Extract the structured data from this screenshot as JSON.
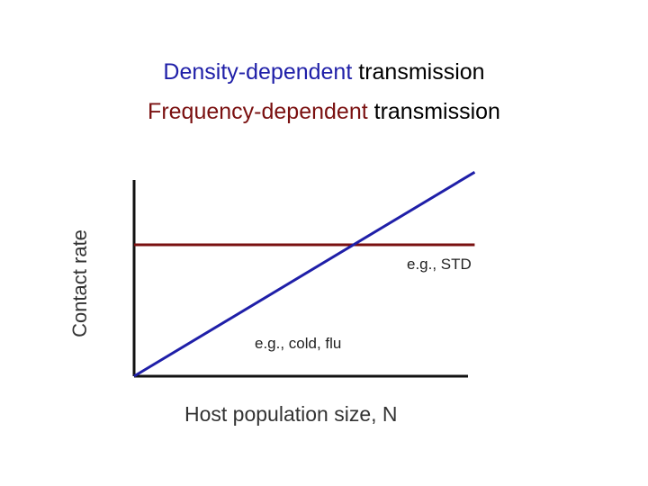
{
  "titles": {
    "density": {
      "highlight": "Density-dependent",
      "rest": " transmission"
    },
    "frequency": {
      "highlight": "Frequency-dependent",
      "rest": " transmission"
    }
  },
  "colors": {
    "density": "#1f1fa8",
    "frequency": "#7a1010",
    "axis": "#111111"
  },
  "chart_data": {
    "type": "line",
    "title": "Density-dependent transmission / Frequency-dependent transmission",
    "xlabel": "Host population size, N",
    "ylabel": "Contact rate",
    "xlim": [
      0,
      10
    ],
    "ylim": [
      0,
      10
    ],
    "grid": false,
    "series": [
      {
        "name": "Density-dependent transmission",
        "x": [
          0,
          10.2
        ],
        "y": [
          0,
          10.4
        ],
        "annotation": "e.g., cold, flu"
      },
      {
        "name": "Frequency-dependent transmission",
        "x": [
          0,
          10.2
        ],
        "y": [
          6.7,
          6.7
        ],
        "annotation": "e.g., STD"
      }
    ]
  }
}
